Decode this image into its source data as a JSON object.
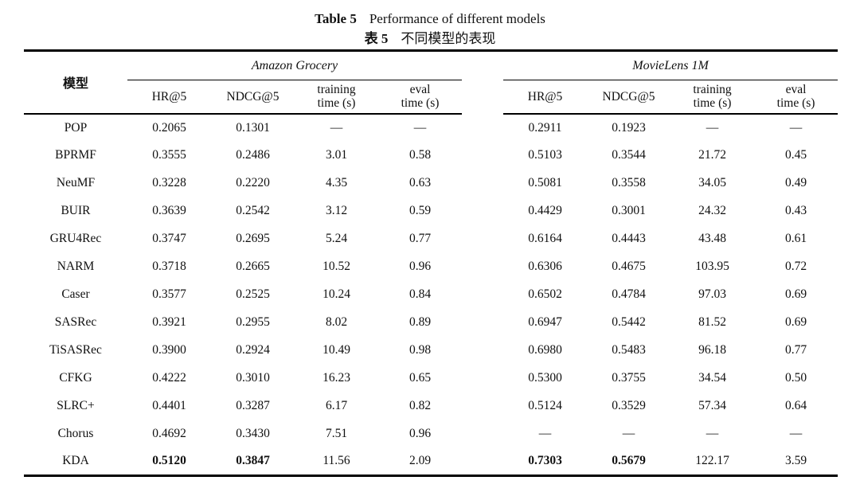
{
  "caption": {
    "en": {
      "label": "Table 5",
      "text": "Performance of different models"
    },
    "zh": {
      "label": "表 5",
      "text": "不同模型的表现"
    }
  },
  "table": {
    "model_column_header": "模型",
    "groups": [
      {
        "name": "Amazon Grocery"
      },
      {
        "name": "MovieLens 1M"
      }
    ],
    "sub_headers": [
      {
        "line1": "HR@5",
        "line2": ""
      },
      {
        "line1": "NDCG@5",
        "line2": ""
      },
      {
        "line1": "training",
        "line2": "time (s)"
      },
      {
        "line1": "eval",
        "line2": "time (s)"
      }
    ],
    "rows": [
      {
        "model": "POP",
        "values": [
          "0.2065",
          "0.1301",
          "—",
          "—",
          "0.2911",
          "0.1923",
          "—",
          "—"
        ],
        "bold": []
      },
      {
        "model": "BPRMF",
        "values": [
          "0.3555",
          "0.2486",
          "3.01",
          "0.58",
          "0.5103",
          "0.3544",
          "21.72",
          "0.45"
        ],
        "bold": []
      },
      {
        "model": "NeuMF",
        "values": [
          "0.3228",
          "0.2220",
          "4.35",
          "0.63",
          "0.5081",
          "0.3558",
          "34.05",
          "0.49"
        ],
        "bold": []
      },
      {
        "model": "BUIR",
        "values": [
          "0.3639",
          "0.2542",
          "3.12",
          "0.59",
          "0.4429",
          "0.3001",
          "24.32",
          "0.43"
        ],
        "bold": []
      },
      {
        "model": "GRU4Rec",
        "values": [
          "0.3747",
          "0.2695",
          "5.24",
          "0.77",
          "0.6164",
          "0.4443",
          "43.48",
          "0.61"
        ],
        "bold": []
      },
      {
        "model": "NARM",
        "values": [
          "0.3718",
          "0.2665",
          "10.52",
          "0.96",
          "0.6306",
          "0.4675",
          "103.95",
          "0.72"
        ],
        "bold": []
      },
      {
        "model": "Caser",
        "values": [
          "0.3577",
          "0.2525",
          "10.24",
          "0.84",
          "0.6502",
          "0.4784",
          "97.03",
          "0.69"
        ],
        "bold": []
      },
      {
        "model": "SASRec",
        "values": [
          "0.3921",
          "0.2955",
          "8.02",
          "0.89",
          "0.6947",
          "0.5442",
          "81.52",
          "0.69"
        ],
        "bold": []
      },
      {
        "model": "TiSASRec",
        "values": [
          "0.3900",
          "0.2924",
          "10.49",
          "0.98",
          "0.6980",
          "0.5483",
          "96.18",
          "0.77"
        ],
        "bold": []
      },
      {
        "model": "CFKG",
        "values": [
          "0.4222",
          "0.3010",
          "16.23",
          "0.65",
          "0.5300",
          "0.3755",
          "34.54",
          "0.50"
        ],
        "bold": []
      },
      {
        "model": "SLRC+",
        "values": [
          "0.4401",
          "0.3287",
          "6.17",
          "0.82",
          "0.5124",
          "0.3529",
          "57.34",
          "0.64"
        ],
        "bold": []
      },
      {
        "model": "Chorus",
        "values": [
          "0.4692",
          "0.3430",
          "7.51",
          "0.96",
          "—",
          "—",
          "—",
          "—"
        ],
        "bold": []
      },
      {
        "model": "KDA",
        "values": [
          "0.5120",
          "0.3847",
          "11.56",
          "2.09",
          "0.7303",
          "0.5679",
          "122.17",
          "3.59"
        ],
        "bold": [
          0,
          1,
          4,
          5
        ]
      }
    ]
  }
}
